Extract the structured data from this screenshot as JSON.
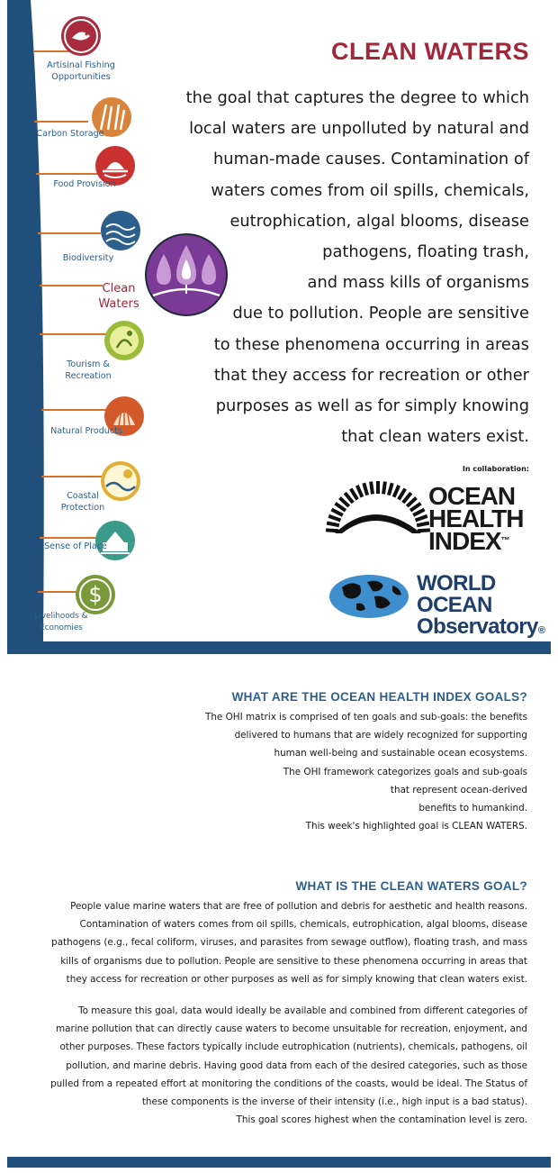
{
  "colors": {
    "navy": "#1f4f7a",
    "title_red": "#a3273a",
    "label_blue": "#2c5f8c",
    "line_orange": "#d9732a",
    "purple": "#7b3a96"
  },
  "sidebar": {
    "goals": [
      {
        "label": "Artisinal Fishing Opportunities",
        "icon": "fishing-icon",
        "color": "#a82c3e"
      },
      {
        "label": "Carbon Storage",
        "icon": "carbon-storage-icon",
        "color": "#d9843a"
      },
      {
        "label": "Food Provision",
        "icon": "food-provision-icon",
        "color": "#c9322f"
      },
      {
        "label": "Biodiversity",
        "icon": "biodiversity-icon",
        "color": "#2c5f8c"
      },
      {
        "label": "Clean Waters",
        "icon": "clean-waters-icon",
        "color": "#7b3a96"
      },
      {
        "label": "Tourism & Recreation",
        "icon": "tourism-icon",
        "color": "#9dbb3a"
      },
      {
        "label": "Natural Products",
        "icon": "natural-products-icon",
        "color": "#d25a2a"
      },
      {
        "label": "Coastal Protection",
        "icon": "coastal-protection-icon",
        "color": "#e0b036"
      },
      {
        "label": "Sense of Place",
        "icon": "sense-of-place-icon",
        "color": "#3a9b8a"
      },
      {
        "label": "Livelihoods & Economies",
        "icon": "dollar-icon",
        "color": "#7a9a3a"
      }
    ]
  },
  "hero": {
    "title": "CLEAN WATERS",
    "lead_lines": [
      "the goal that captures the degree to which",
      "local waters are unpolluted by natural and",
      "human-made causes. Contamination of",
      "waters comes from oil spills, chemicals,",
      "eutrophication, algal blooms, disease",
      "pathogens, floating trash,",
      "and mass kills of organisms",
      "due to pollution. People are sensitive",
      "to these phenomena occurring in areas",
      "that they access for recreation or other",
      "purposes as well as for simply knowing",
      "that clean waters exist."
    ],
    "collab_label": "In collaboration:",
    "ohi_logo_lines": [
      "OCEAN",
      "HEALTH",
      "INDEX"
    ],
    "ohi_tm": "™",
    "woo_logo_lines": [
      "WORLD OCEAN",
      "Observatory"
    ],
    "woo_reg": "®"
  },
  "article": {
    "section1": {
      "title": "WHAT ARE THE OCEAN HEALTH INDEX GOALS?",
      "lines": [
        "The OHI matrix is comprised of ten goals and sub-goals: the benefits",
        "delivered to humans that are widely recognized for supporting",
        "human well-being and sustainable ocean ecosystems.",
        "The OHI framework categorizes goals and sub-goals",
        "that represent ocean-derived",
        "benefits to humankind.",
        "This week's highlighted goal is CLEAN WATERS."
      ]
    },
    "section2": {
      "title": "WHAT IS THE CLEAN WATERS GOAL?",
      "para1": [
        "People value marine waters that are free of pollution and debris for aesthetic and health reasons.",
        "Contamination of waters comes from oil spills, chemicals, eutrophication, algal blooms, disease",
        "pathogens (e.g., fecal coliform, viruses, and parasites from sewage outflow), floating trash, and mass",
        "kills of organisms due to pollution. People are sensitive to these phenomena occurring in areas that",
        "they access for recreation or other purposes as well as for simply knowing that clean waters exist."
      ],
      "para2": [
        "To measure this goal, data would ideally be available and combined from different categories of",
        "marine pollution that can directly cause waters to become unsuitable for recreation, enjoyment, and",
        "other purposes. These factors typically include eutrophication (nutrients), chemicals, pathogens, oil",
        "pollution, and marine debris. Having good data from each of the desired categories, such as those",
        "pulled from a repeated effort at monitoring the conditions of the coasts, would be ideal. The Status of",
        "these components is the inverse of their intensity (i.e., high input is a bad status).",
        "This goal scores highest when the contamination level is zero."
      ]
    }
  }
}
